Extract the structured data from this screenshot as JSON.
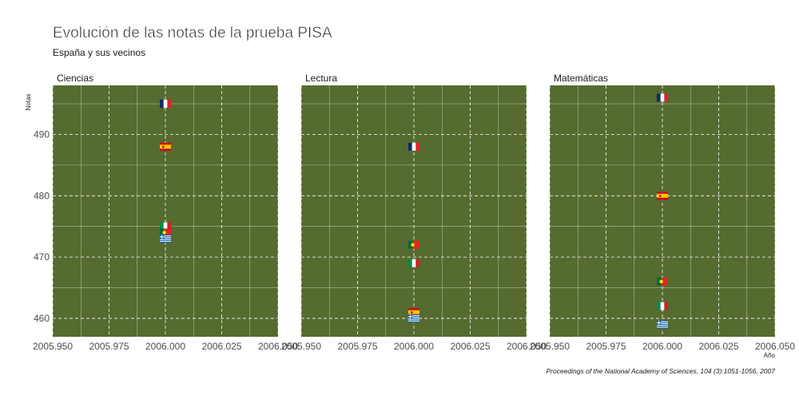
{
  "chart_data": {
    "type": "scatter",
    "title": "Evolución de las notas de la prueba PISA",
    "subtitle": "España y sus vecinos",
    "xlabel": "Año",
    "ylabel": "Notas",
    "caption": "Proceedings of the National Academy of Sciences, 104 (3):1051-1056, 2007",
    "xlim": [
      2005.95,
      2006.05
    ],
    "ylim": [
      457,
      498
    ],
    "x_ticks": [
      2005.95,
      2005.975,
      2006,
      2006.025,
      2006.05
    ],
    "x_tick_labels": [
      "2005.950",
      "2005.975",
      "2006.000",
      "2006.025",
      "2006.050"
    ],
    "y_ticks": [
      460,
      470,
      480,
      490
    ],
    "y_tick_labels": [
      "460",
      "470",
      "480",
      "490"
    ],
    "grid": true,
    "panel_color": "#556b2f",
    "marker": "country-flag",
    "panels": [
      {
        "name": "Ciencias",
        "points": [
          {
            "country": "Francia",
            "flag": "fr",
            "x": 2006,
            "y": 495
          },
          {
            "country": "España",
            "flag": "es",
            "x": 2006,
            "y": 488
          },
          {
            "country": "Italia",
            "flag": "it",
            "x": 2006,
            "y": 475
          },
          {
            "country": "Portugal",
            "flag": "pt",
            "x": 2006,
            "y": 474
          },
          {
            "country": "Grecia",
            "flag": "gr",
            "x": 2006,
            "y": 473
          }
        ]
      },
      {
        "name": "Lectura",
        "points": [
          {
            "country": "Francia",
            "flag": "fr",
            "x": 2006,
            "y": 488
          },
          {
            "country": "Portugal",
            "flag": "pt",
            "x": 2006,
            "y": 472
          },
          {
            "country": "Italia",
            "flag": "it",
            "x": 2006,
            "y": 469
          },
          {
            "country": "España",
            "flag": "es",
            "x": 2006,
            "y": 461
          },
          {
            "country": "Grecia",
            "flag": "gr",
            "x": 2006,
            "y": 460
          }
        ]
      },
      {
        "name": "Matemáticas",
        "points": [
          {
            "country": "Francia",
            "flag": "fr",
            "x": 2006,
            "y": 496
          },
          {
            "country": "España",
            "flag": "es",
            "x": 2006,
            "y": 480
          },
          {
            "country": "Portugal",
            "flag": "pt",
            "x": 2006,
            "y": 466
          },
          {
            "country": "Italia",
            "flag": "it",
            "x": 2006,
            "y": 462
          },
          {
            "country": "Grecia",
            "flag": "gr",
            "x": 2006,
            "y": 459
          }
        ]
      }
    ]
  }
}
